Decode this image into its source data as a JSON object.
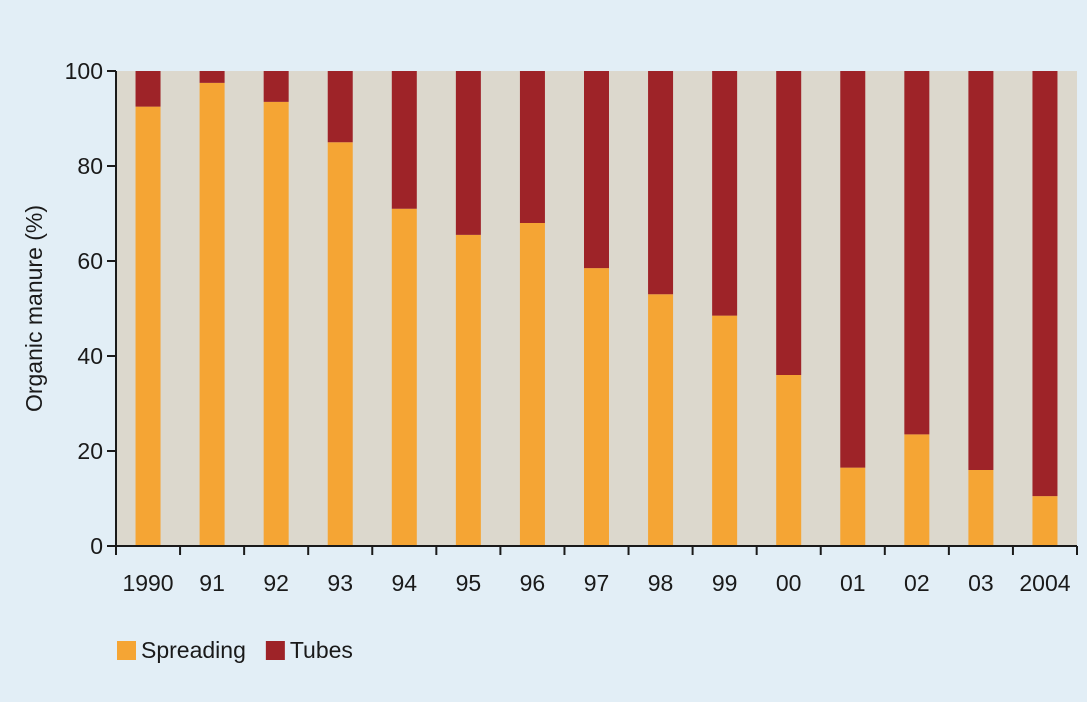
{
  "chart_data": {
    "type": "bar",
    "stacked": true,
    "ylabel": "Organic manure (%)",
    "xlabel": "",
    "ylim": [
      0,
      100
    ],
    "yticks": [
      0,
      20,
      40,
      60,
      80,
      100
    ],
    "categories": [
      "1990",
      "91",
      "92",
      "93",
      "94",
      "95",
      "96",
      "97",
      "98",
      "99",
      "00",
      "01",
      "02",
      "03",
      "2004"
    ],
    "series": [
      {
        "name": "Spreading",
        "color": "#f5a534",
        "values": [
          92.5,
          97.5,
          93.5,
          85,
          71,
          65.5,
          68,
          58.5,
          53,
          48.5,
          36,
          16.5,
          23.5,
          16,
          10.5
        ]
      },
      {
        "name": "Tubes",
        "color": "#9e2328",
        "values": [
          7.5,
          2.5,
          6.5,
          15,
          29,
          34.5,
          32,
          41.5,
          47,
          51.5,
          64,
          83.5,
          76.5,
          84,
          89.5
        ]
      }
    ],
    "grid": false,
    "legend_position": "bottom-left"
  },
  "colors": {
    "page_background": "#e2eef6",
    "plot_background": "#dcd8cd",
    "axis": "#1a1a1a"
  }
}
